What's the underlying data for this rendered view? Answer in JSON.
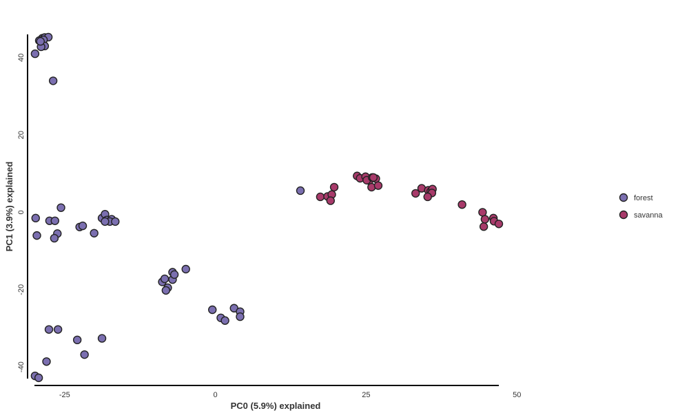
{
  "chart_data": {
    "type": "scatter",
    "xlabel": "PC0 (5.9%) explained",
    "ylabel": "PC1 (3.9%) explained",
    "xlim": [
      -30,
      47
    ],
    "ylim": [
      -43,
      46
    ],
    "xticks": [
      -25,
      0,
      25,
      50
    ],
    "yticks": [
      -40,
      -20,
      0,
      20,
      40
    ],
    "xtick_labels": [
      "-25",
      "0",
      "25",
      "50"
    ],
    "ytick_labels": [
      "-40",
      "-20",
      "0",
      "20",
      "40"
    ],
    "grid": false,
    "legend_position": "right",
    "series": [
      {
        "name": "forest",
        "color": "#7b6fb0",
        "points": [
          [
            -28.7,
            45.0
          ],
          [
            -28.3,
            45.2
          ],
          [
            -27.7,
            45.3
          ],
          [
            -29.2,
            44.4
          ],
          [
            -28.5,
            44.6
          ],
          [
            -28.3,
            43.0
          ],
          [
            -28.9,
            42.8
          ],
          [
            -29.0,
            44.2
          ],
          [
            -29.9,
            41.0
          ],
          [
            -26.9,
            34.0
          ],
          [
            -29.8,
            -1.5
          ],
          [
            -29.6,
            -6.0
          ],
          [
            -25.6,
            1.2
          ],
          [
            -27.5,
            -2.2
          ],
          [
            -26.6,
            -2.2
          ],
          [
            -26.2,
            -5.5
          ],
          [
            -26.7,
            -6.7
          ],
          [
            -22.5,
            -3.8
          ],
          [
            -22.0,
            -3.5
          ],
          [
            -20.1,
            -5.4
          ],
          [
            -18.8,
            -1.5
          ],
          [
            -18.3,
            -0.5
          ],
          [
            -17.8,
            -2.2
          ],
          [
            -18.0,
            -2.0
          ],
          [
            -17.2,
            -1.8
          ],
          [
            -17.5,
            -2.4
          ],
          [
            -16.6,
            -2.4
          ],
          [
            -18.3,
            -2.4
          ],
          [
            -8.8,
            -18.0
          ],
          [
            -8.4,
            -17.2
          ],
          [
            -7.9,
            -19.5
          ],
          [
            -8.2,
            -20.2
          ],
          [
            -7.1,
            -15.5
          ],
          [
            -7.1,
            -17.4
          ],
          [
            -6.8,
            -16.1
          ],
          [
            -4.9,
            -14.7
          ],
          [
            -0.5,
            -25.2
          ],
          [
            0.9,
            -27.3
          ],
          [
            1.6,
            -28.0
          ],
          [
            3.1,
            -24.8
          ],
          [
            4.1,
            -25.7
          ],
          [
            4.1,
            -27.0
          ],
          [
            14.1,
            5.6
          ],
          [
            -27.6,
            -30.3
          ],
          [
            -26.1,
            -30.3
          ],
          [
            -22.9,
            -33.0
          ],
          [
            -21.7,
            -36.8
          ],
          [
            -18.8,
            -32.6
          ],
          [
            -28.0,
            -38.6
          ],
          [
            -29.9,
            -42.3
          ],
          [
            -29.3,
            -42.8
          ]
        ]
      },
      {
        "name": "savanna",
        "color": "#a83a6a",
        "points": [
          [
            17.4,
            4.0
          ],
          [
            18.6,
            4.1
          ],
          [
            19.3,
            4.6
          ],
          [
            19.7,
            6.5
          ],
          [
            19.1,
            3.0
          ],
          [
            23.5,
            9.4
          ],
          [
            24.0,
            8.8
          ],
          [
            24.9,
            9.2
          ],
          [
            25.5,
            8.2
          ],
          [
            25.1,
            8.3
          ],
          [
            26.0,
            9.0
          ],
          [
            26.6,
            8.7
          ],
          [
            26.2,
            9.0
          ],
          [
            25.9,
            6.5
          ],
          [
            27.0,
            6.9
          ],
          [
            33.2,
            4.9
          ],
          [
            34.2,
            6.2
          ],
          [
            35.3,
            5.7
          ],
          [
            35.7,
            5.4
          ],
          [
            36.0,
            6.0
          ],
          [
            35.9,
            5.0
          ],
          [
            35.2,
            4.0
          ],
          [
            40.9,
            2.0
          ],
          [
            44.3,
            0.0
          ],
          [
            44.5,
            -3.7
          ],
          [
            44.7,
            -1.8
          ],
          [
            46.1,
            -1.5
          ],
          [
            46.2,
            -2.3
          ],
          [
            47.0,
            -3.0
          ]
        ]
      }
    ]
  }
}
